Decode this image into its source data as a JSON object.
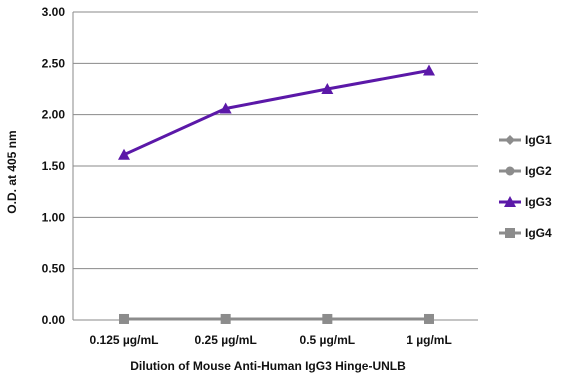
{
  "chart_data": {
    "type": "line",
    "title": "",
    "xlabel": "Dilution of Mouse Anti-Human IgG3 Hinge-UNLB",
    "ylabel": "O.D. at 405 nm",
    "categories": [
      "0.125 µg/mL",
      "0.25 µg/mL",
      "0.5 µg/mL",
      "1 µg/mL"
    ],
    "ylim": [
      0,
      3
    ],
    "yticks": [
      "0.00",
      "0.50",
      "1.00",
      "1.50",
      "2.00",
      "2.50",
      "3.00"
    ],
    "grid": true,
    "legend_position": "right",
    "series": [
      {
        "name": "IgG1",
        "values": [
          0.01,
          0.01,
          0.01,
          0.01
        ],
        "color": "#8c8c8c",
        "marker": "diamond"
      },
      {
        "name": "IgG2",
        "values": [
          0.01,
          0.01,
          0.01,
          0.01
        ],
        "color": "#8c8c8c",
        "marker": "circle"
      },
      {
        "name": "IgG3",
        "values": [
          1.61,
          2.06,
          2.25,
          2.43
        ],
        "color": "#5b18a8",
        "marker": "triangle"
      },
      {
        "name": "IgG4",
        "values": [
          0.01,
          0.01,
          0.01,
          0.01
        ],
        "color": "#8c8c8c",
        "marker": "square"
      }
    ]
  }
}
